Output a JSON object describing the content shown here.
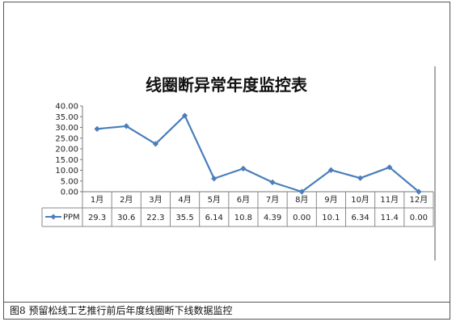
{
  "caption": "图8  预留松线工艺推行前后年度线圈断下线数据监控",
  "chart_data": {
    "type": "line",
    "title": "线圈断异常年度监控表",
    "categories": [
      "1月",
      "2月",
      "3月",
      "4月",
      "5月",
      "6月",
      "7月",
      "8月",
      "9月",
      "10月",
      "11月",
      "12月"
    ],
    "series": [
      {
        "name": "PPM",
        "values": [
          29.3,
          30.6,
          22.3,
          35.5,
          6.14,
          10.8,
          4.39,
          0.0,
          10.1,
          6.34,
          11.4,
          0.0
        ],
        "labels": [
          "29.3",
          "30.6",
          "22.3",
          "35.5",
          "6.14",
          "10.8",
          "4.39",
          "0.00",
          "10.1",
          "6.34",
          "11.4",
          "0.00"
        ],
        "color": "#4a7ebb"
      }
    ],
    "ylim": [
      0,
      40
    ],
    "yticks": [
      "0.00",
      "5.00",
      "10.00",
      "15.00",
      "20.00",
      "25.00",
      "30.00",
      "35.00",
      "40.00"
    ],
    "ytick_values": [
      0,
      5,
      10,
      15,
      20,
      25,
      30,
      35,
      40
    ],
    "grid": false,
    "data_table": true
  }
}
